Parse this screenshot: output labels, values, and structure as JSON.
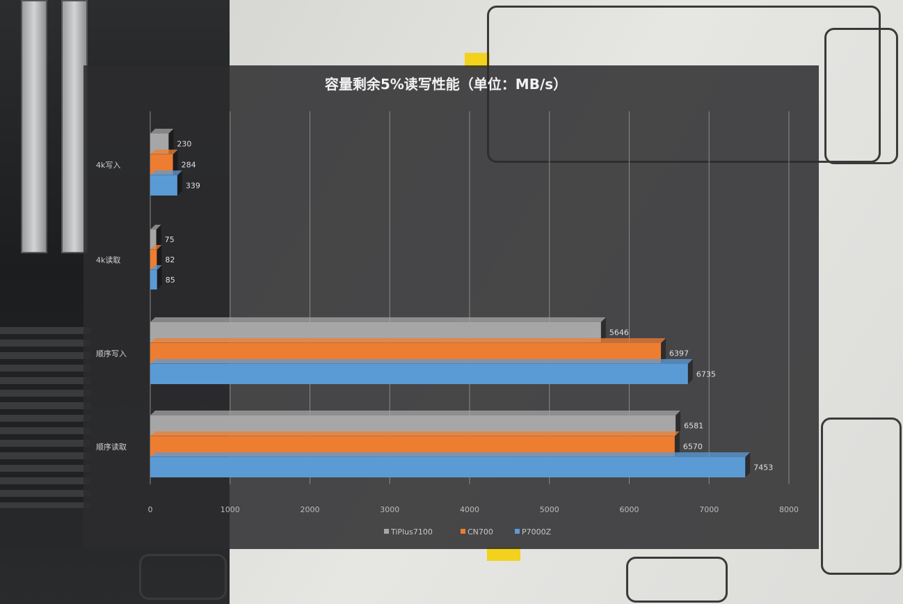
{
  "chart_data": {
    "type": "bar",
    "orientation": "horizontal",
    "title": "容量剩余5%读写性能（单位：MB/s）",
    "categories": [
      "4k写入",
      "4k读取",
      "顺序写入",
      "顺序读取"
    ],
    "series": [
      {
        "name": "TiPlus7100",
        "values": [
          230,
          75,
          5646,
          6581
        ],
        "color": "#a6a6a6"
      },
      {
        "name": "CN700",
        "values": [
          284,
          82,
          6397,
          6570
        ],
        "color": "#ed7d31"
      },
      {
        "name": "P7000Z",
        "values": [
          339,
          85,
          6735,
          7453
        ],
        "color": "#5b9bd5"
      }
    ],
    "xlim": [
      0,
      8000
    ],
    "xticks": [
      0,
      1000,
      2000,
      3000,
      4000,
      5000,
      6000,
      7000,
      8000
    ],
    "grid": "vertical",
    "legend_position": "bottom",
    "xlabel": "",
    "ylabel": ""
  }
}
